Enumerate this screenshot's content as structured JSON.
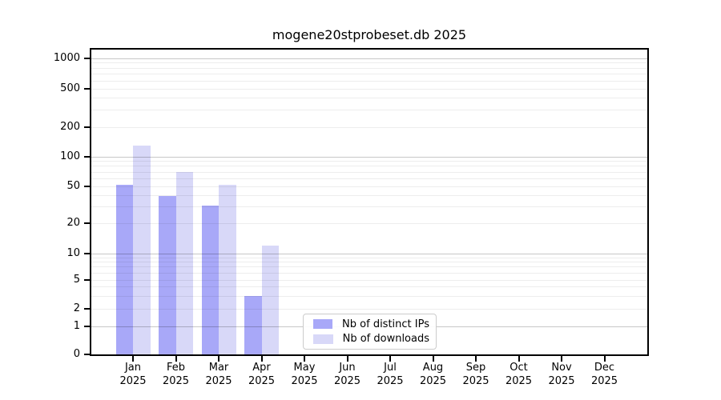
{
  "chart_data": {
    "type": "bar",
    "title": "mogene20stprobeset.db 2025",
    "categories": [
      "Jan",
      "Feb",
      "Mar",
      "Apr",
      "May",
      "Jun",
      "Jul",
      "Aug",
      "Sep",
      "Oct",
      "Nov",
      "Dec"
    ],
    "x_tick_year": "2025",
    "series": [
      {
        "name": "Nb of distinct IPs",
        "color": "#a8a8f8",
        "values": [
          52,
          39,
          31,
          3,
          0,
          0,
          0,
          0,
          0,
          0,
          0,
          0
        ]
      },
      {
        "name": "Nb of downloads",
        "color": "#d8d8f8",
        "values": [
          130,
          70,
          52,
          12,
          0,
          0,
          0,
          0,
          0,
          0,
          0,
          0
        ]
      }
    ],
    "yscale": "symlog",
    "ylim": [
      0,
      1000
    ],
    "yticks": [
      0,
      1,
      2,
      5,
      10,
      20,
      50,
      100,
      200,
      500,
      1000
    ],
    "grid": "horizontal major and minor gridlines",
    "legend_position": "inside lower-center"
  }
}
